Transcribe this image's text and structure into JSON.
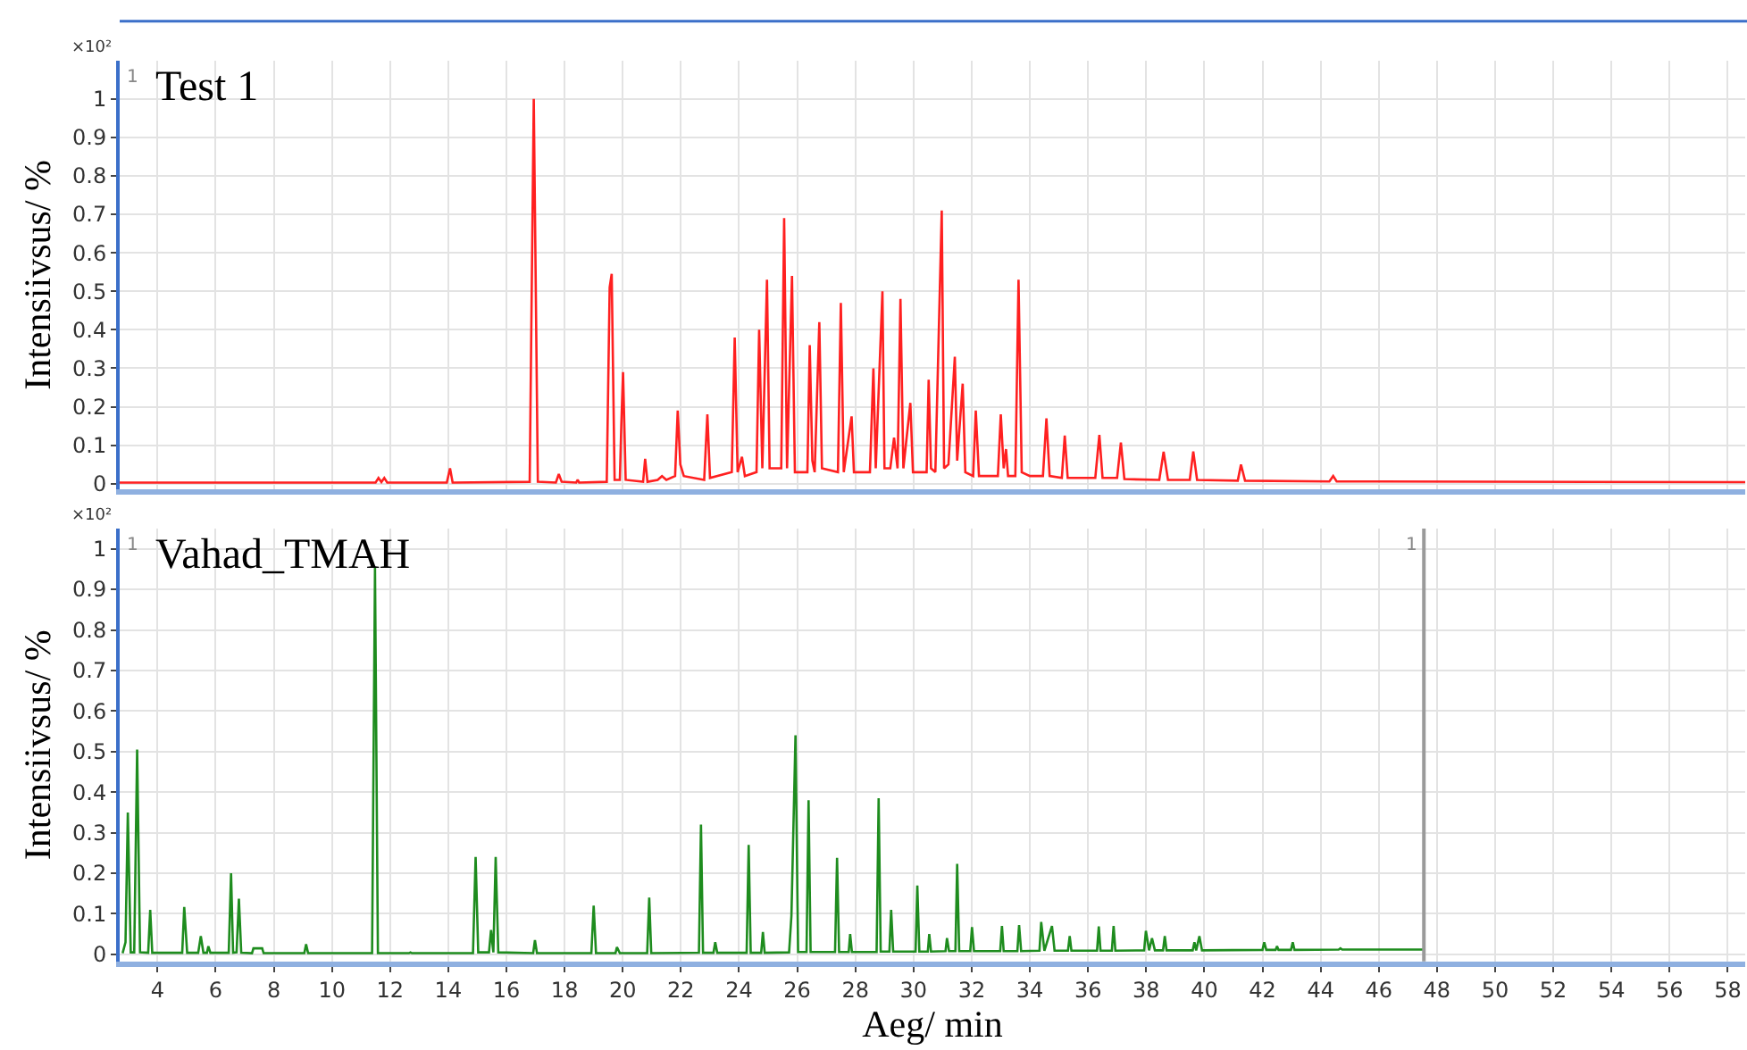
{
  "chart_data": [
    {
      "type": "line",
      "title": "Test 1",
      "ylabel": "Intensiivsus/ %",
      "annotations": [
        "×10²",
        "1"
      ],
      "xlim": [
        2.7,
        58.6
      ],
      "xticks": [
        4,
        6,
        8,
        10,
        12,
        14,
        16,
        18,
        20,
        22,
        24,
        26,
        28,
        30,
        32,
        34,
        36,
        38,
        40,
        42,
        44,
        46,
        48,
        50,
        52,
        54,
        56,
        58
      ],
      "ylim": [
        -0.015,
        1.1
      ],
      "yticks": [
        0,
        0.1,
        0.2,
        0.3,
        0.4,
        0.5,
        0.6,
        0.7,
        0.8,
        0.9,
        1
      ],
      "grid": true,
      "tick_labels": "y",
      "marker": "none",
      "line_style": "solid",
      "series": [
        {
          "color": "#ff2020",
          "x": [
            2.7,
            11.5,
            11.6,
            11.7,
            11.8,
            11.9,
            13.95,
            14.06,
            14.15,
            16.8,
            16.94,
            17.08,
            17.7,
            17.8,
            17.9,
            18.4,
            18.45,
            18.5,
            19.45,
            19.55,
            19.62,
            19.72,
            19.9,
            19.95,
            20.01,
            20.1,
            20.7,
            20.77,
            20.85,
            21.2,
            21.35,
            21.5,
            21.8,
            21.89,
            21.98,
            22.1,
            22.8,
            22.91,
            23.0,
            23.75,
            23.85,
            23.95,
            24.1,
            24.2,
            24.6,
            24.69,
            24.8,
            24.96,
            25.05,
            25.45,
            25.55,
            25.65,
            25.82,
            25.92,
            26.35,
            26.43,
            26.52,
            26.6,
            26.76,
            26.85,
            27.4,
            27.5,
            27.6,
            27.87,
            27.95,
            28.5,
            28.62,
            28.7,
            28.93,
            29.0,
            29.2,
            29.33,
            29.45,
            29.55,
            29.65,
            29.89,
            29.98,
            30.45,
            30.52,
            30.6,
            30.75,
            30.97,
            31.05,
            31.2,
            31.42,
            31.5,
            31.69,
            31.78,
            32.05,
            32.14,
            32.25,
            32.9,
            33.0,
            33.1,
            33.18,
            33.25,
            33.5,
            33.61,
            33.72,
            34.0,
            34.45,
            34.57,
            34.68,
            35.1,
            35.2,
            35.3,
            36.25,
            36.39,
            36.5,
            37.0,
            37.13,
            37.25,
            38.45,
            38.6,
            38.75,
            39.5,
            39.62,
            39.75,
            41.15,
            41.26,
            41.4,
            44.3,
            44.43,
            44.55,
            46.0,
            58.6
          ],
          "values": [
            0.003,
            0.003,
            0.015,
            0.004,
            0.015,
            0.003,
            0.003,
            0.04,
            0.003,
            0.005,
            1.0,
            0.005,
            0.003,
            0.025,
            0.005,
            0.003,
            0.01,
            0.003,
            0.005,
            0.51,
            0.545,
            0.01,
            0.01,
            0.15,
            0.29,
            0.01,
            0.005,
            0.065,
            0.005,
            0.01,
            0.02,
            0.01,
            0.02,
            0.19,
            0.05,
            0.02,
            0.01,
            0.18,
            0.015,
            0.03,
            0.38,
            0.03,
            0.07,
            0.02,
            0.03,
            0.4,
            0.04,
            0.53,
            0.04,
            0.04,
            0.69,
            0.04,
            0.54,
            0.03,
            0.03,
            0.36,
            0.06,
            0.03,
            0.42,
            0.04,
            0.03,
            0.47,
            0.03,
            0.175,
            0.03,
            0.03,
            0.3,
            0.04,
            0.5,
            0.04,
            0.04,
            0.12,
            0.04,
            0.48,
            0.04,
            0.21,
            0.03,
            0.03,
            0.27,
            0.04,
            0.03,
            0.71,
            0.04,
            0.05,
            0.33,
            0.06,
            0.26,
            0.03,
            0.02,
            0.19,
            0.02,
            0.02,
            0.18,
            0.04,
            0.09,
            0.02,
            0.02,
            0.53,
            0.03,
            0.02,
            0.02,
            0.17,
            0.02,
            0.015,
            0.125,
            0.015,
            0.015,
            0.127,
            0.015,
            0.015,
            0.107,
            0.012,
            0.01,
            0.083,
            0.01,
            0.01,
            0.084,
            0.01,
            0.008,
            0.05,
            0.008,
            0.006,
            0.02,
            0.006,
            0.006,
            0.004
          ]
        }
      ]
    },
    {
      "type": "line",
      "title": "Vahad_TMAH",
      "ylabel": "Intensiivsus/ %",
      "xlabel": "Aeg/ min",
      "annotations": [
        "×10²",
        "1",
        "1"
      ],
      "xlim": [
        2.7,
        58.6
      ],
      "xticks": [
        4,
        6,
        8,
        10,
        12,
        14,
        16,
        18,
        20,
        22,
        24,
        26,
        28,
        30,
        32,
        34,
        36,
        38,
        40,
        42,
        44,
        46,
        48,
        50,
        52,
        54,
        56,
        58
      ],
      "ylim": [
        -0.017,
        1.05
      ],
      "yticks": [
        0,
        0.1,
        0.2,
        0.3,
        0.4,
        0.5,
        0.6,
        0.7,
        0.8,
        0.9,
        1
      ],
      "grid": true,
      "marker": "none",
      "line_style": "solid",
      "ref_lines": [
        {
          "axis": "x",
          "value": 47.55,
          "color": "#9a9a9a"
        }
      ],
      "series": [
        {
          "color": "#1e8c1e",
          "x": [
            2.8,
            2.9,
            2.98,
            3.08,
            3.2,
            3.3,
            3.4,
            3.68,
            3.75,
            3.82,
            4.85,
            4.92,
            4.97,
            5.02,
            5.4,
            5.49,
            5.58,
            5.7,
            5.75,
            5.82,
            6.45,
            6.53,
            6.6,
            6.72,
            6.8,
            6.88,
            7.25,
            7.3,
            7.6,
            7.65,
            9.05,
            9.11,
            9.18,
            11.38,
            11.48,
            11.58,
            12.65,
            12.7,
            12.75,
            14.85,
            14.94,
            15.03,
            15.4,
            15.47,
            15.55,
            15.63,
            15.72,
            16.92,
            16.98,
            17.05,
            18.92,
            19.0,
            19.08,
            19.75,
            19.8,
            19.9,
            20.84,
            20.91,
            20.98,
            22.62,
            22.69,
            22.76,
            23.12,
            23.18,
            23.25,
            24.26,
            24.33,
            24.4,
            24.76,
            24.82,
            24.88,
            25.72,
            25.8,
            25.94,
            26.03,
            26.32,
            26.39,
            26.46,
            27.3,
            27.37,
            27.44,
            27.77,
            27.82,
            27.88,
            28.73,
            28.8,
            28.87,
            29.17,
            29.23,
            29.3,
            30.07,
            30.13,
            30.2,
            30.49,
            30.54,
            30.6,
            31.1,
            31.15,
            31.22,
            31.44,
            31.5,
            31.57,
            31.95,
            32.01,
            32.08,
            32.98,
            33.04,
            33.1,
            33.57,
            33.63,
            33.7,
            34.33,
            34.39,
            34.5,
            34.76,
            34.85,
            35.31,
            35.37,
            35.43,
            36.31,
            36.37,
            36.43,
            36.82,
            36.88,
            36.94,
            37.93,
            37.99,
            38.1,
            38.2,
            38.3,
            38.58,
            38.64,
            38.7,
            39.6,
            39.66,
            39.72,
            39.83,
            39.92,
            42.0,
            42.06,
            42.13,
            42.45,
            42.5,
            42.55,
            42.98,
            43.04,
            43.1,
            44.62,
            44.68,
            44.74,
            47.56
          ],
          "values": [
            0.003,
            0.03,
            0.35,
            0.005,
            0.005,
            0.505,
            0.005,
            0.004,
            0.11,
            0.004,
            0.004,
            0.117,
            0.06,
            0.004,
            0.004,
            0.045,
            0.004,
            0.004,
            0.02,
            0.004,
            0.004,
            0.2,
            0.004,
            0.005,
            0.137,
            0.004,
            0.003,
            0.015,
            0.015,
            0.003,
            0.003,
            0.025,
            0.003,
            0.003,
            0.953,
            0.003,
            0.003,
            0.005,
            0.003,
            0.003,
            0.24,
            0.005,
            0.005,
            0.06,
            0.005,
            0.24,
            0.005,
            0.003,
            0.035,
            0.003,
            0.003,
            0.12,
            0.003,
            0.003,
            0.018,
            0.003,
            0.003,
            0.14,
            0.003,
            0.004,
            0.32,
            0.004,
            0.004,
            0.03,
            0.004,
            0.004,
            0.27,
            0.004,
            0.004,
            0.055,
            0.004,
            0.005,
            0.095,
            0.54,
            0.006,
            0.006,
            0.38,
            0.006,
            0.006,
            0.238,
            0.006,
            0.006,
            0.05,
            0.006,
            0.006,
            0.385,
            0.007,
            0.007,
            0.11,
            0.007,
            0.007,
            0.17,
            0.007,
            0.007,
            0.05,
            0.007,
            0.008,
            0.04,
            0.008,
            0.008,
            0.223,
            0.008,
            0.008,
            0.067,
            0.008,
            0.008,
            0.07,
            0.008,
            0.008,
            0.072,
            0.008,
            0.009,
            0.08,
            0.009,
            0.07,
            0.009,
            0.009,
            0.045,
            0.009,
            0.009,
            0.069,
            0.009,
            0.009,
            0.07,
            0.009,
            0.01,
            0.058,
            0.01,
            0.04,
            0.01,
            0.01,
            0.045,
            0.01,
            0.01,
            0.03,
            0.01,
            0.045,
            0.01,
            0.011,
            0.03,
            0.011,
            0.011,
            0.02,
            0.011,
            0.011,
            0.03,
            0.011,
            0.012,
            0.015,
            0.012,
            0.012
          ]
        }
      ]
    }
  ]
}
